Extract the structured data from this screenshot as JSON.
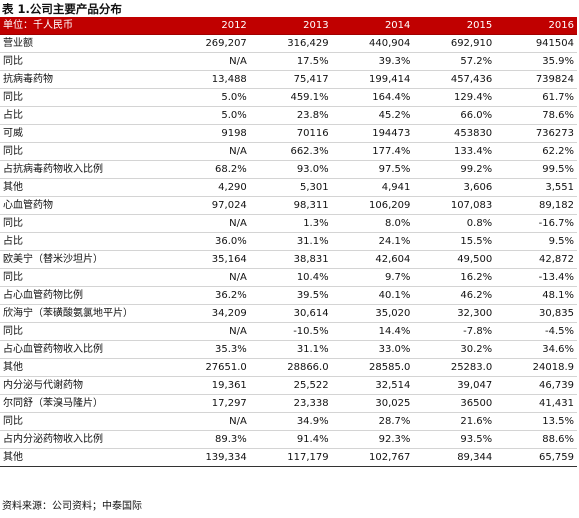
{
  "title": "表 1.公司主要产品分布",
  "table": {
    "headers": [
      "单位：千人民币",
      "2012",
      "2013",
      "2014",
      "2015",
      "2016"
    ],
    "rows": [
      [
        "营业额",
        "269,207",
        "316,429",
        "440,904",
        "692,910",
        "941504"
      ],
      [
        "同比",
        "N/A",
        "17.5%",
        "39.3%",
        "57.2%",
        "35.9%"
      ],
      [
        "抗病毒药物",
        "13,488",
        "75,417",
        "199,414",
        "457,436",
        "739824"
      ],
      [
        "同比",
        "5.0%",
        "459.1%",
        "164.4%",
        "129.4%",
        "61.7%"
      ],
      [
        "占比",
        "5.0%",
        "23.8%",
        "45.2%",
        "66.0%",
        "78.6%"
      ],
      [
        "可威",
        "9198",
        "70116",
        "194473",
        "453830",
        "736273"
      ],
      [
        "同比",
        "N/A",
        "662.3%",
        "177.4%",
        "133.4%",
        "62.2%"
      ],
      [
        "占抗病毒药物收入比例",
        "68.2%",
        "93.0%",
        "97.5%",
        "99.2%",
        "99.5%"
      ],
      [
        "其他",
        "4,290",
        "5,301",
        "4,941",
        "3,606",
        "3,551"
      ],
      [
        "心血管药物",
        "97,024",
        "98,311",
        "106,209",
        "107,083",
        "89,182"
      ],
      [
        "同比",
        "N/A",
        "1.3%",
        "8.0%",
        "0.8%",
        "-16.7%"
      ],
      [
        "占比",
        "36.0%",
        "31.1%",
        "24.1%",
        "15.5%",
        "9.5%"
      ],
      [
        "欧美宁（替米沙坦片）",
        "35,164",
        "38,831",
        "42,604",
        "49,500",
        "42,872"
      ],
      [
        "同比",
        "N/A",
        "10.4%",
        "9.7%",
        "16.2%",
        "-13.4%"
      ],
      [
        "占心血管药物比例",
        "36.2%",
        "39.5%",
        "40.1%",
        "46.2%",
        "48.1%"
      ],
      [
        "欣海宁（苯磺酸氨氯地平片）",
        "34,209",
        "30,614",
        "35,020",
        "32,300",
        "30,835"
      ],
      [
        "同比",
        "N/A",
        "-10.5%",
        "14.4%",
        "-7.8%",
        "-4.5%"
      ],
      [
        "占心血管药物收入比例",
        "35.3%",
        "31.1%",
        "33.0%",
        "30.2%",
        "34.6%"
      ],
      [
        "其他",
        "27651.0",
        "28866.0",
        "28585.0",
        "25283.0",
        "24018.9"
      ],
      [
        "内分泌与代谢药物",
        "19,361",
        "25,522",
        "32,514",
        "39,047",
        "46,739"
      ],
      [
        "尔同舒（苯溴马隆片）",
        "17,297",
        "23,338",
        "30,025",
        "36500",
        "41,431"
      ],
      [
        "同比",
        "N/A",
        "34.9%",
        "28.7%",
        "21.6%",
        "13.5%"
      ],
      [
        "占内分泌药物收入比例",
        "89.3%",
        "91.4%",
        "92.3%",
        "93.5%",
        "88.6%"
      ],
      [
        "其他",
        "139,334",
        "117,179",
        "102,767",
        "89,344",
        "65,759"
      ]
    ]
  },
  "source": "资料来源：公司资料；中泰国际"
}
